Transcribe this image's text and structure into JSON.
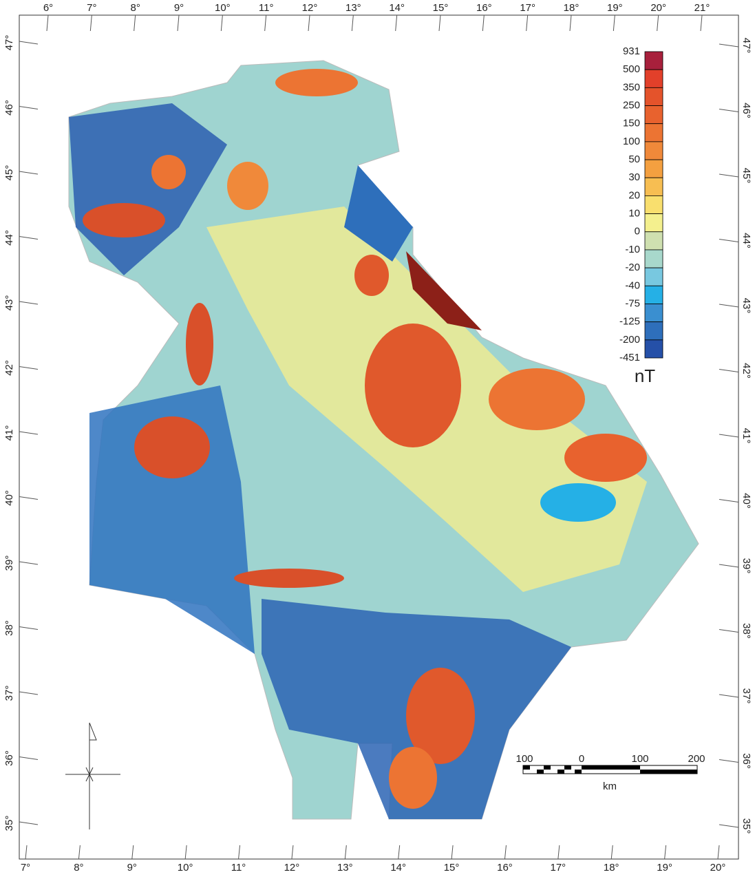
{
  "map": {
    "top_longitudes": [
      "6°",
      "7°",
      "8°",
      "9°",
      "10°",
      "11°",
      "12°",
      "13°",
      "14°",
      "15°",
      "16°",
      "17°",
      "18°",
      "19°",
      "20°",
      "21°"
    ],
    "bottom_longitudes": [
      "7°",
      "8°",
      "9°",
      "10°",
      "11°",
      "12°",
      "13°",
      "14°",
      "15°",
      "16°",
      "17°",
      "18°",
      "19°",
      "20°"
    ],
    "left_latitudes": [
      "47°",
      "46°",
      "45°",
      "44°",
      "43°",
      "42°",
      "41°",
      "40°",
      "39°",
      "38°",
      "37°",
      "36°",
      "35°"
    ],
    "right_latitudes": [
      "47°",
      "46°",
      "45°",
      "44°",
      "43°",
      "42°",
      "41°",
      "40°",
      "39°",
      "38°",
      "37°",
      "36°",
      "35°"
    ],
    "legend": {
      "labels": [
        "931",
        "500",
        "350",
        "250",
        "150",
        "100",
        "50",
        "30",
        "20",
        "10",
        "0",
        "-10",
        "-20",
        "-40",
        "-75",
        "-125",
        "-200",
        "-451"
      ],
      "colors": [
        "#a8203c",
        "#e2402a",
        "#e4532b",
        "#e8622e",
        "#ec7433",
        "#f0893a",
        "#f4a040",
        "#f7be52",
        "#f9df6e",
        "#f4f08e",
        "#cfe0b0",
        "#a8d8cc",
        "#78c8e0",
        "#25b0e6",
        "#3a8fd0",
        "#2e6fbb",
        "#2550a8"
      ],
      "unit": "nT"
    },
    "scale_bar": {
      "labels": [
        "100",
        "0",
        "100",
        "200"
      ],
      "unit": "km"
    }
  }
}
